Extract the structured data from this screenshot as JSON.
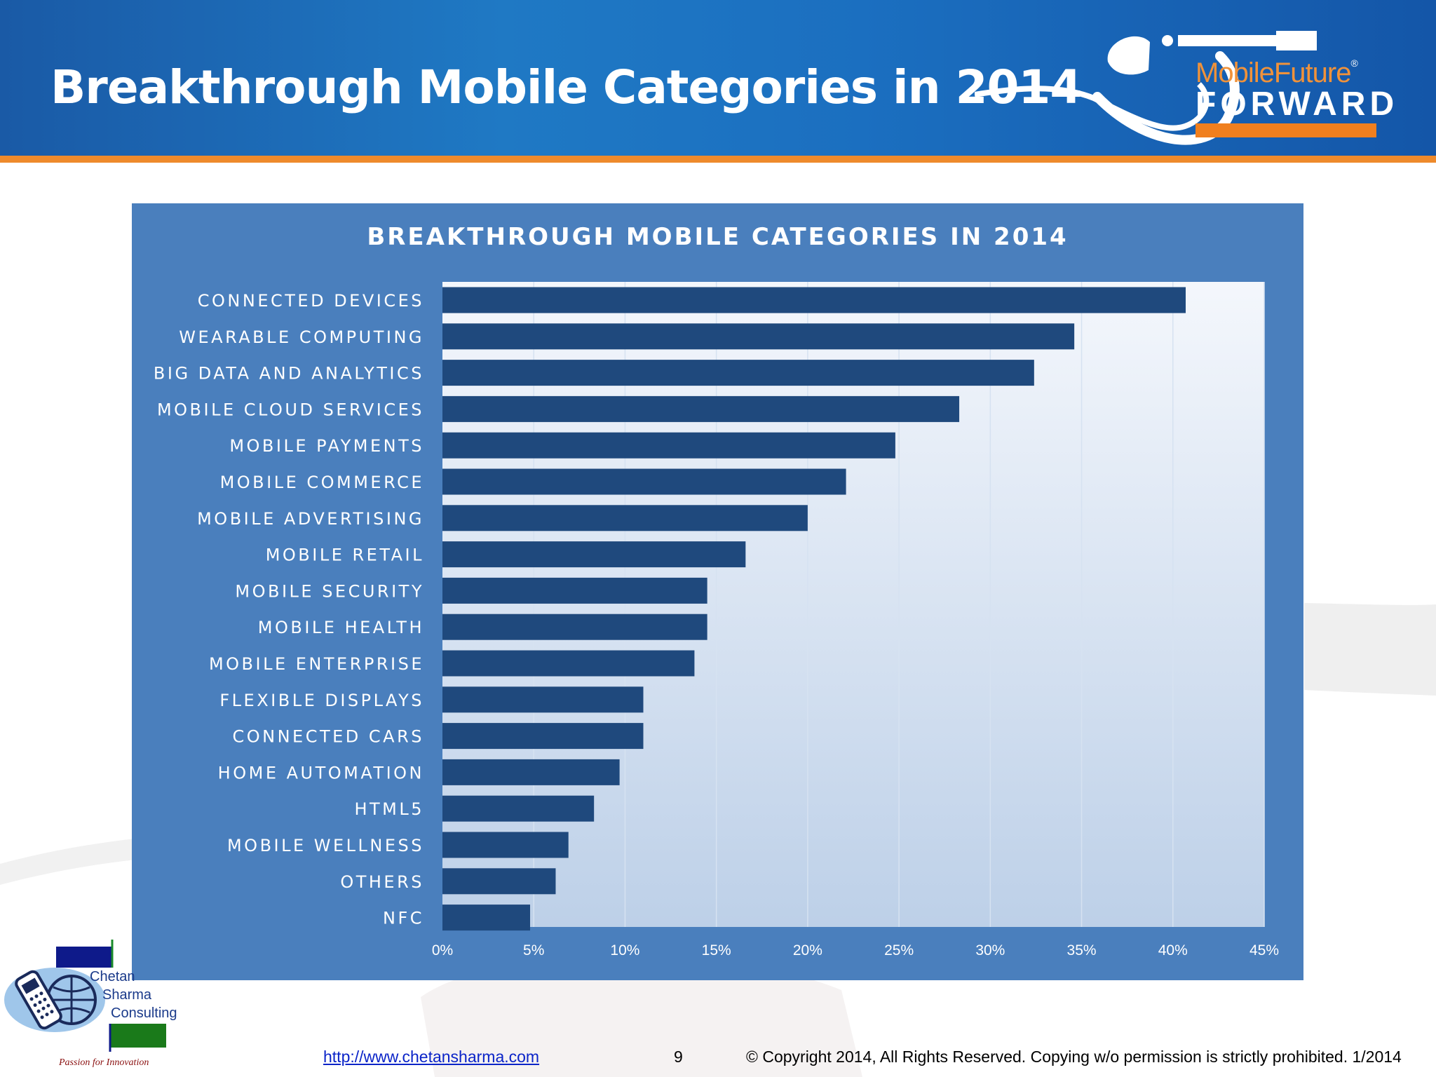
{
  "slide": {
    "title": "Breakthrough Mobile Categories in 2014",
    "page_number": "9",
    "footer_link": "http://www.chetansharma.com",
    "copyright": "© Copyright 2014, All Rights Reserved. Copying w/o permission is strictly prohibited. 1/2014"
  },
  "brand": {
    "logo_line1": "MobileFuture",
    "logo_trademark": "®",
    "logo_line2": "FORWARD",
    "company_name": [
      "Chetan",
      "Sharma",
      "Consulting"
    ],
    "tagline": "Passion for Innovation"
  },
  "colors": {
    "header_blue": "#1b6fc0",
    "accent_orange": "#ee8a2c",
    "chart_panel": "#4a7fbd",
    "bar": "#1f497d"
  },
  "chart_data": {
    "type": "bar",
    "orientation": "horizontal",
    "title": "BREAKTHROUGH MOBILE CATEGORIES IN 2014",
    "categories": [
      "CONNECTED DEVICES",
      "WEARABLE COMPUTING",
      "BIG DATA AND ANALYTICS",
      "MOBILE CLOUD SERVICES",
      "MOBILE PAYMENTS",
      "MOBILE COMMERCE",
      "MOBILE ADVERTISING",
      "MOBILE RETAIL",
      "MOBILE SECURITY",
      "MOBILE HEALTH",
      "MOBILE ENTERPRISE",
      "FLEXIBLE DISPLAYS",
      "CONNECTED CARS",
      "HOME AUTOMATION",
      "HTML5",
      "MOBILE WELLNESS",
      "OTHERS",
      "NFC"
    ],
    "values": [
      40.7,
      34.6,
      32.4,
      28.3,
      24.8,
      22.1,
      20.0,
      16.6,
      14.5,
      14.5,
      13.8,
      11.0,
      11.0,
      9.7,
      8.3,
      6.9,
      6.2,
      4.8
    ],
    "xticks": [
      "0%",
      "5%",
      "10%",
      "15%",
      "20%",
      "25%",
      "30%",
      "35%",
      "40%",
      "45%"
    ],
    "xlim": [
      0,
      45
    ],
    "grid": true,
    "legend": "none"
  }
}
